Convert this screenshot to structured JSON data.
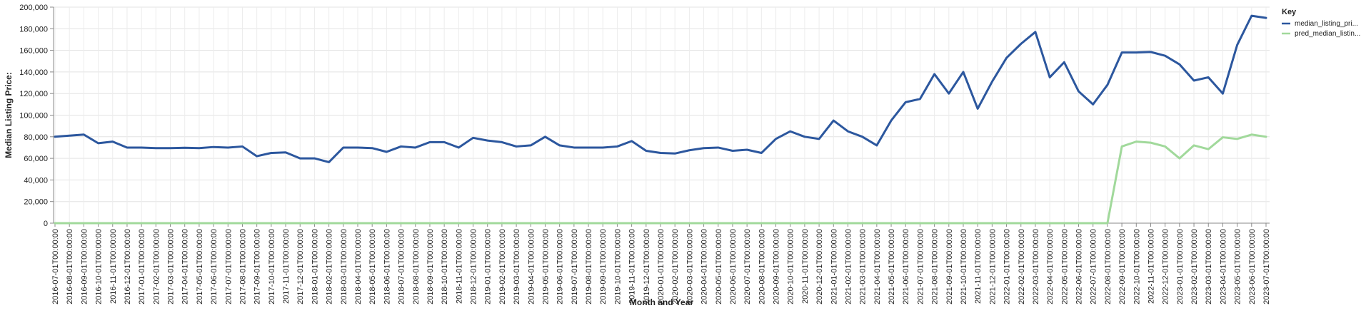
{
  "chart_data": {
    "type": "line",
    "xlabel": "Month and Year",
    "ylabel": "Median Listing Price:",
    "ylim": [
      0,
      200000
    ],
    "y_ticks": [
      "0",
      "20,000",
      "40,000",
      "60,000",
      "80,000",
      "100,000",
      "120,000",
      "140,000",
      "160,000",
      "180,000",
      "200,000"
    ],
    "y_tick_values": [
      0,
      20000,
      40000,
      60000,
      80000,
      100000,
      120000,
      140000,
      160000,
      180000,
      200000
    ],
    "grid": true,
    "legend_title": "Key",
    "legend_position": "top-right",
    "x": [
      "2016-07-01T00:00:00",
      "2016-08-01T00:00:00",
      "2016-09-01T00:00:00",
      "2016-10-01T00:00:00",
      "2016-11-01T00:00:00",
      "2016-12-01T00:00:00",
      "2017-01-01T00:00:00",
      "2017-02-01T00:00:00",
      "2017-03-01T00:00:00",
      "2017-04-01T00:00:00",
      "2017-05-01T00:00:00",
      "2017-06-01T00:00:00",
      "2017-07-01T00:00:00",
      "2017-08-01T00:00:00",
      "2017-09-01T00:00:00",
      "2017-10-01T00:00:00",
      "2017-11-01T00:00:00",
      "2017-12-01T00:00:00",
      "2018-01-01T00:00:00",
      "2018-02-01T00:00:00",
      "2018-03-01T00:00:00",
      "2018-04-01T00:00:00",
      "2018-05-01T00:00:00",
      "2018-06-01T00:00:00",
      "2018-07-01T00:00:00",
      "2018-08-01T00:00:00",
      "2018-09-01T00:00:00",
      "2018-10-01T00:00:00",
      "2018-11-01T00:00:00",
      "2018-12-01T00:00:00",
      "2019-01-01T00:00:00",
      "2019-02-01T00:00:00",
      "2019-03-01T00:00:00",
      "2019-04-01T00:00:00",
      "2019-05-01T00:00:00",
      "2019-06-01T00:00:00",
      "2019-07-01T00:00:00",
      "2019-08-01T00:00:00",
      "2019-09-01T00:00:00",
      "2019-10-01T00:00:00",
      "2019-11-01T00:00:00",
      "2019-12-01T00:00:00",
      "2020-01-01T00:00:00",
      "2020-02-01T00:00:00",
      "2020-03-01T00:00:00",
      "2020-04-01T00:00:00",
      "2020-05-01T00:00:00",
      "2020-06-01T00:00:00",
      "2020-07-01T00:00:00",
      "2020-08-01T00:00:00",
      "2020-09-01T00:00:00",
      "2020-10-01T00:00:00",
      "2020-11-01T00:00:00",
      "2020-12-01T00:00:00",
      "2021-01-01T00:00:00",
      "2021-02-01T00:00:00",
      "2021-03-01T00:00:00",
      "2021-04-01T00:00:00",
      "2021-05-01T00:00:00",
      "2021-06-01T00:00:00",
      "2021-07-01T00:00:00",
      "2021-08-01T00:00:00",
      "2021-09-01T00:00:00",
      "2021-10-01T00:00:00",
      "2021-11-01T00:00:00",
      "2021-12-01T00:00:00",
      "2022-01-01T00:00:00",
      "2022-02-01T00:00:00",
      "2022-03-01T00:00:00",
      "2022-04-01T00:00:00",
      "2022-05-01T00:00:00",
      "2022-06-01T00:00:00",
      "2022-07-01T00:00:00",
      "2022-08-01T00:00:00",
      "2022-09-01T00:00:00",
      "2022-10-01T00:00:00",
      "2022-11-01T00:00:00",
      "2022-12-01T00:00:00",
      "2023-01-01T00:00:00",
      "2023-02-01T00:00:00",
      "2023-03-01T00:00:00",
      "2023-04-01T00:00:00",
      "2023-05-01T00:00:00",
      "2023-06-01T00:00:00",
      "2023-07-01T00:00:00"
    ],
    "series": [
      {
        "name": "median_listing_pri...",
        "color": "#2c579e",
        "values": [
          80000,
          81000,
          82000,
          74000,
          75500,
          70000,
          70000,
          69500,
          69500,
          69800,
          69500,
          70500,
          70000,
          71000,
          62000,
          65000,
          65500,
          60000,
          60000,
          56500,
          70000,
          70000,
          69500,
          66000,
          71000,
          70000,
          75000,
          75000,
          70000,
          79000,
          76500,
          75000,
          71000,
          72000,
          80000,
          72000,
          70000,
          70000,
          70000,
          71000,
          76000,
          67000,
          65000,
          64500,
          67500,
          69500,
          70000,
          67000,
          68000,
          65000,
          78000,
          85000,
          80000,
          78000,
          95000,
          85000,
          80000,
          72000,
          95000,
          112000,
          115000,
          138000,
          120000,
          140000,
          106000,
          131000,
          153000,
          166000,
          177000,
          135000,
          149000,
          122000,
          110000,
          128000,
          158000,
          158000,
          158500,
          155000,
          147000,
          132000,
          135000,
          120000,
          165000,
          192000,
          190000
        ]
      },
      {
        "name": "pred_median_listin...",
        "color": "#a1d99b",
        "values": [
          0,
          0,
          0,
          0,
          0,
          0,
          0,
          0,
          0,
          0,
          0,
          0,
          0,
          0,
          0,
          0,
          0,
          0,
          0,
          0,
          0,
          0,
          0,
          0,
          0,
          0,
          0,
          0,
          0,
          0,
          0,
          0,
          0,
          0,
          0,
          0,
          0,
          0,
          0,
          0,
          0,
          0,
          0,
          0,
          0,
          0,
          0,
          0,
          0,
          0,
          0,
          0,
          0,
          0,
          0,
          0,
          0,
          0,
          0,
          0,
          0,
          0,
          0,
          0,
          0,
          0,
          0,
          0,
          0,
          0,
          0,
          0,
          0,
          0,
          71000,
          75500,
          74500,
          71000,
          60000,
          72000,
          68500,
          79500,
          78000,
          82000,
          80000
        ]
      }
    ]
  }
}
